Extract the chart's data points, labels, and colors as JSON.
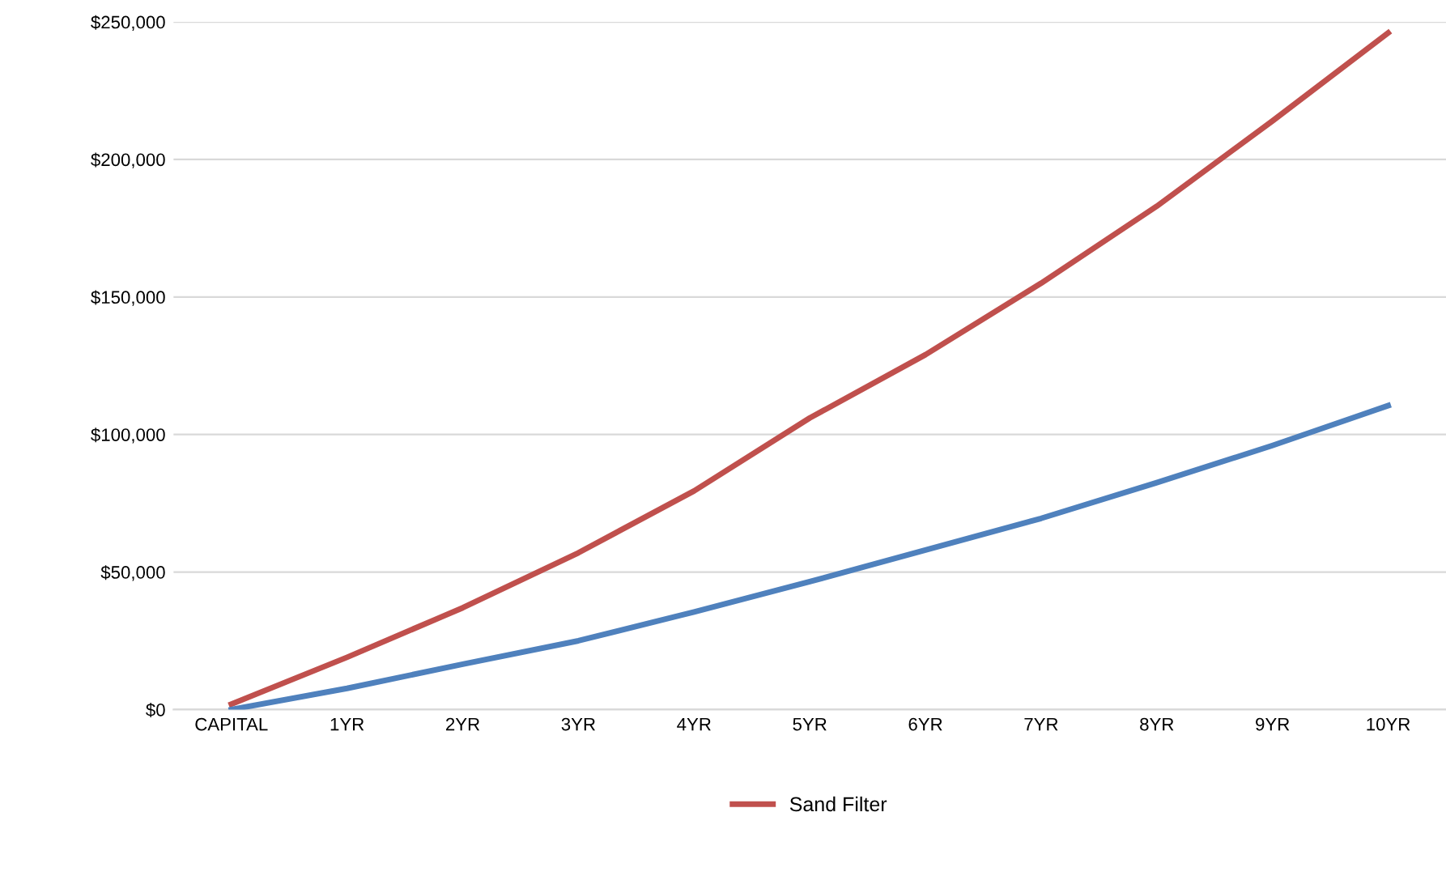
{
  "chart_data": {
    "type": "line",
    "categories": [
      "CAPITAL",
      "1YR",
      "2YR",
      "3YR",
      "4YR",
      "5YR",
      "6YR",
      "7YR",
      "8YR",
      "9YR",
      "10YR"
    ],
    "series": [
      {
        "name": "Sand Filter",
        "color": "#c0504d",
        "values": [
          2000,
          19000,
          37000,
          57000,
          79500,
          106000,
          129000,
          155000,
          183000,
          214000,
          246000
        ]
      },
      {
        "color": "#4f81bd",
        "values": [
          0,
          7700,
          16500,
          25000,
          35500,
          46500,
          58000,
          69500,
          82500,
          96000,
          110500
        ]
      }
    ],
    "ylim": [
      0,
      250000
    ],
    "yticks": [
      {
        "value": 0,
        "label": "$0"
      },
      {
        "value": 50000,
        "label": "$50,000"
      },
      {
        "value": 100000,
        "label": "$100,000"
      },
      {
        "value": 150000,
        "label": "$150,000"
      },
      {
        "value": 200000,
        "label": "$200,000"
      },
      {
        "value": 250000,
        "label": "$250,000"
      }
    ],
    "grid": "y",
    "legend": "bottom",
    "marker": "none",
    "line_style": "solid"
  }
}
